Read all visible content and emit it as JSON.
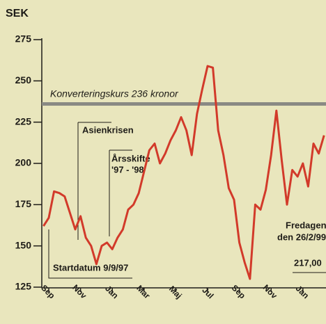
{
  "chart_data": {
    "type": "line",
    "y_label": "SEK",
    "categories": [
      null,
      "Sep",
      null,
      null,
      null,
      null,
      null,
      "Nov",
      null,
      null,
      null,
      null,
      null,
      "Jan",
      null,
      null,
      null,
      null,
      null,
      "Mar",
      null,
      null,
      null,
      null,
      null,
      "Maj",
      null,
      null,
      null,
      null,
      null,
      "Jul",
      null,
      null,
      null,
      null,
      null,
      "Sep",
      null,
      null,
      null,
      null,
      null,
      "Nov",
      null,
      null,
      null,
      null,
      null,
      "Jan",
      null,
      null,
      null,
      null
    ],
    "values": [
      162,
      167,
      183,
      182,
      180,
      170,
      160,
      168,
      155,
      150,
      139,
      150,
      152,
      148,
      155,
      160,
      172,
      175,
      182,
      195,
      208,
      212,
      200,
      206,
      214,
      220,
      228,
      220,
      205,
      230,
      245,
      259,
      258,
      220,
      205,
      185,
      178,
      152,
      140,
      130,
      175,
      172,
      184,
      205,
      232,
      202,
      175,
      196,
      192,
      200,
      186,
      212,
      206,
      217
    ],
    "color": "#d23a2a",
    "ylim": [
      125,
      275
    ],
    "yticks": [
      125,
      150,
      175,
      200,
      225,
      250,
      275
    ],
    "reference_line": {
      "value": 236,
      "label": "Konverteringskurs 236 kronor",
      "color": "#8a8a84"
    },
    "annotations": [
      {
        "lines": [
          "Asienkrisen"
        ]
      },
      {
        "lines": [
          "Årsskifte",
          "'97 - '98"
        ]
      },
      {
        "lines": [
          "Startdatum 9/9/97"
        ]
      },
      {
        "lines": [
          "Fredagen",
          "den 26/2/99"
        ]
      }
    ],
    "last_value_label": {
      "value": 217,
      "label": "217,00"
    }
  }
}
